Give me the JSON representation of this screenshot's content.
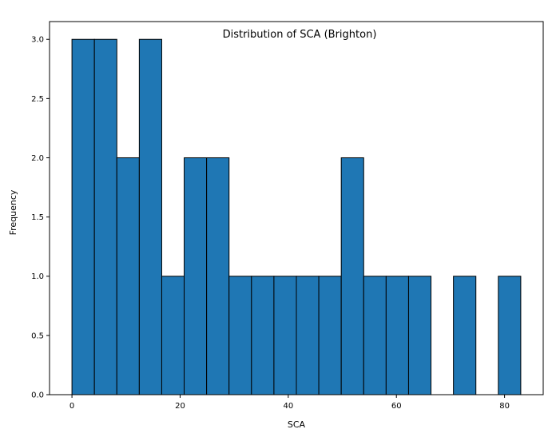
{
  "chart_data": {
    "type": "bar",
    "title": "Distribution of SCA (Brighton)",
    "xlabel": "SCA",
    "ylabel": "Frequency",
    "bins": [
      {
        "x0": 0.0,
        "x1": 4.15,
        "count": 3
      },
      {
        "x0": 4.15,
        "x1": 8.3,
        "count": 3
      },
      {
        "x0": 8.3,
        "x1": 12.45,
        "count": 2
      },
      {
        "x0": 12.45,
        "x1": 16.6,
        "count": 3
      },
      {
        "x0": 16.6,
        "x1": 20.75,
        "count": 1
      },
      {
        "x0": 20.75,
        "x1": 24.9,
        "count": 2
      },
      {
        "x0": 24.9,
        "x1": 29.05,
        "count": 2
      },
      {
        "x0": 29.05,
        "x1": 33.2,
        "count": 1
      },
      {
        "x0": 33.2,
        "x1": 37.35,
        "count": 1
      },
      {
        "x0": 37.35,
        "x1": 41.5,
        "count": 1
      },
      {
        "x0": 41.5,
        "x1": 45.65,
        "count": 1
      },
      {
        "x0": 45.65,
        "x1": 49.8,
        "count": 1
      },
      {
        "x0": 49.8,
        "x1": 53.95,
        "count": 2
      },
      {
        "x0": 53.95,
        "x1": 58.1,
        "count": 1
      },
      {
        "x0": 58.1,
        "x1": 62.25,
        "count": 1
      },
      {
        "x0": 62.25,
        "x1": 66.4,
        "count": 1
      },
      {
        "x0": 66.4,
        "x1": 70.55,
        "count": 0
      },
      {
        "x0": 70.55,
        "x1": 74.7,
        "count": 1
      },
      {
        "x0": 74.7,
        "x1": 78.85,
        "count": 0
      },
      {
        "x0": 78.85,
        "x1": 83.0,
        "count": 1
      }
    ],
    "xlim": [
      -4.15,
      87.15
    ],
    "ylim": [
      0,
      3.15
    ],
    "xticks": [
      0,
      20,
      40,
      60,
      80
    ],
    "xtick_labels": [
      "0",
      "20",
      "40",
      "60",
      "80"
    ],
    "yticks": [
      0,
      0.5,
      1.0,
      1.5,
      2.0,
      2.5,
      3.0
    ],
    "ytick_labels": [
      "0.0",
      "0.5",
      "1.0",
      "1.5",
      "2.0",
      "2.5",
      "3.0"
    ],
    "grid": false,
    "bar_color": "#1f77b4",
    "edge_color": "#000000"
  }
}
